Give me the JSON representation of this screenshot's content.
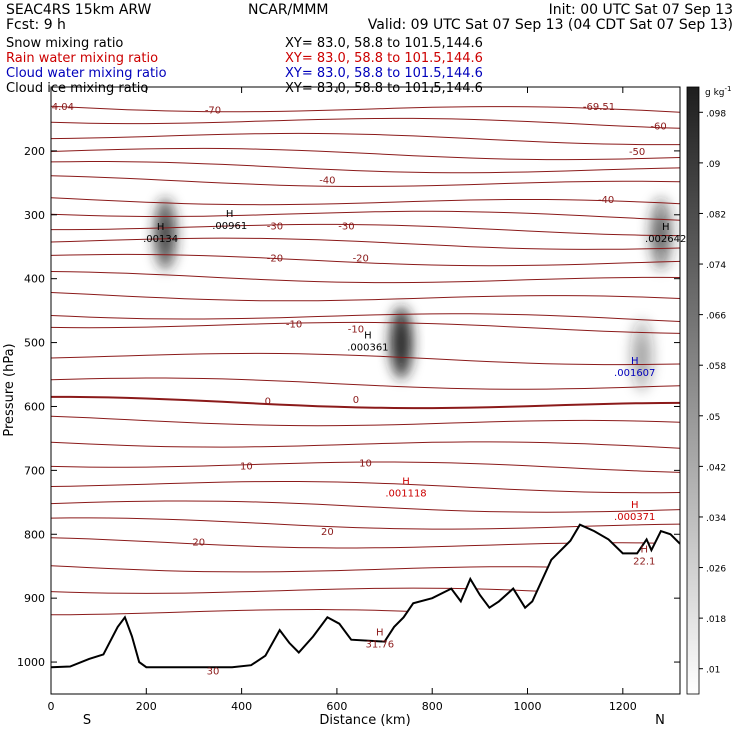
{
  "header": {
    "left_line1": "SEAC4RS 15km ARW",
    "left_line2": "Fcst:     9  h",
    "center_line1": "NCAR/MMM",
    "right_line1": "Init: 00 UTC Sat 07 Sep 13",
    "right_line2": "Valid: 09 UTC Sat 07 Sep 13 (04 CDT Sat 07 Sep 13)"
  },
  "fields": [
    {
      "label": "Snow mixing ratio",
      "xy": "XY=   83.0, 58.8 to 101.5,144.6",
      "color": "#000000"
    },
    {
      "label": "Rain water mixing ratio",
      "xy": "XY=  83.0, 58.8 to 101.5,144.6",
      "color": "#cc0000"
    },
    {
      "label": "Cloud water mixing ratio",
      "xy": "XY=   83.0, 58.8 to 101.5,144.6",
      "color": "#0000bb"
    },
    {
      "label": "Cloud ice mixing ratio",
      "xy": "XY=   83.0, 58.8 to 101.5,144.6",
      "color": "#000000"
    }
  ],
  "chart_data": {
    "type": "contour_cross_section",
    "xlabel": "Distance (km)",
    "ylabel": "Pressure (hPa)",
    "xlim": [
      0,
      1320
    ],
    "ylim": [
      1050,
      100
    ],
    "x_ticks": [
      0,
      200,
      400,
      600,
      800,
      1000,
      1200
    ],
    "y_ticks": [
      200,
      300,
      400,
      500,
      600,
      700,
      800,
      900,
      1000
    ],
    "x_end_labels": [
      "S",
      "N"
    ],
    "colorbar": {
      "unit": "g kg",
      "unit_exp": "-1",
      "ticks": [
        ".01",
        ".018",
        ".026",
        ".034",
        ".042",
        ".05",
        ".058",
        ".066",
        ".074",
        ".082",
        ".09",
        ".098"
      ]
    },
    "temperature_contour_color": "#8b1a1a",
    "temperature_contours": [
      {
        "label": "-70",
        "lx": 340,
        "lp": 135
      },
      {
        "label": "-60",
        "lx": 1275,
        "lp": 160
      },
      {
        "label": "-50",
        "lx": 1230,
        "lp": 200
      },
      {
        "label": "-40",
        "lx": 580,
        "lp": 245
      },
      {
        "label": "-40",
        "lx": 1165,
        "lp": 275
      },
      {
        "label": "-30",
        "lx": 470,
        "lp": 317
      },
      {
        "label": "-30",
        "lx": 620,
        "lp": 317
      },
      {
        "label": "-20",
        "lx": 470,
        "lp": 367
      },
      {
        "label": "-20",
        "lx": 650,
        "lp": 367
      },
      {
        "label": "-10",
        "lx": 510,
        "lp": 470
      },
      {
        "label": "-10",
        "lx": 640,
        "lp": 478
      },
      {
        "label": "0",
        "lx": 455,
        "lp": 591
      },
      {
        "label": "0",
        "lx": 640,
        "lp": 588
      },
      {
        "label": "10",
        "lx": 410,
        "lp": 692
      },
      {
        "label": "10",
        "lx": 660,
        "lp": 688
      },
      {
        "label": "20",
        "lx": 310,
        "lp": 811
      },
      {
        "label": "20",
        "lx": 580,
        "lp": 795
      },
      {
        "label": "30",
        "lx": 340,
        "lp": 1013
      }
    ],
    "corner_values": [
      {
        "text": "4.04",
        "x": 25,
        "p": 130,
        "color": "#8b1a1a"
      },
      {
        "text": "-69.51",
        "x": 1150,
        "p": 130,
        "color": "#8b1a1a"
      }
    ],
    "maxima": [
      {
        "label": "H",
        "value": ".00134",
        "x": 230,
        "p": 330,
        "color": "#000000"
      },
      {
        "label": "H",
        "value": ".00961",
        "x": 375,
        "p": 310,
        "color": "#000000"
      },
      {
        "label": "H",
        "value": ".000361",
        "x": 665,
        "p": 500,
        "color": "#000000"
      },
      {
        "label": "H",
        "value": ".002642",
        "x": 1290,
        "p": 330,
        "color": "#000000"
      },
      {
        "label": "H",
        "value": ".001607",
        "x": 1225,
        "p": 540,
        "color": "#0000bb"
      },
      {
        "label": "H",
        "value": ".001118",
        "x": 745,
        "p": 728,
        "color": "#cc0000"
      },
      {
        "label": "H",
        "value": ".000371",
        "x": 1225,
        "p": 765,
        "color": "#cc0000"
      },
      {
        "label": "H",
        "value": "31.76",
        "x": 690,
        "p": 965,
        "color": "#8b1a1a"
      },
      {
        "label": "H",
        "value": "22.1",
        "x": 1245,
        "p": 835,
        "color": "#8b1a1a"
      }
    ],
    "hydrometeor_maxima": [
      {
        "x": 240,
        "p": 330,
        "strength": 0.75
      },
      {
        "x": 735,
        "p": 500,
        "strength": 0.95
      },
      {
        "x": 1280,
        "p": 330,
        "strength": 0.55
      },
      {
        "x": 1240,
        "p": 520,
        "strength": 0.3
      }
    ],
    "terrain_pressure": [
      [
        0,
        1008
      ],
      [
        40,
        1007
      ],
      [
        80,
        995
      ],
      [
        110,
        988
      ],
      [
        140,
        945
      ],
      [
        155,
        930
      ],
      [
        170,
        960
      ],
      [
        185,
        1000
      ],
      [
        200,
        1008
      ],
      [
        300,
        1008
      ],
      [
        380,
        1008
      ],
      [
        420,
        1005
      ],
      [
        450,
        990
      ],
      [
        480,
        950
      ],
      [
        500,
        970
      ],
      [
        520,
        985
      ],
      [
        550,
        960
      ],
      [
        580,
        930
      ],
      [
        605,
        940
      ],
      [
        630,
        965
      ],
      [
        700,
        968
      ],
      [
        720,
        945
      ],
      [
        740,
        930
      ],
      [
        760,
        908
      ],
      [
        800,
        900
      ],
      [
        840,
        885
      ],
      [
        860,
        905
      ],
      [
        880,
        870
      ],
      [
        900,
        895
      ],
      [
        920,
        915
      ],
      [
        940,
        905
      ],
      [
        970,
        885
      ],
      [
        995,
        915
      ],
      [
        1010,
        905
      ],
      [
        1050,
        840
      ],
      [
        1090,
        810
      ],
      [
        1110,
        785
      ],
      [
        1140,
        795
      ],
      [
        1170,
        808
      ],
      [
        1200,
        830
      ],
      [
        1230,
        830
      ],
      [
        1250,
        808
      ],
      [
        1260,
        825
      ],
      [
        1280,
        795
      ],
      [
        1300,
        800
      ],
      [
        1320,
        815
      ]
    ]
  }
}
